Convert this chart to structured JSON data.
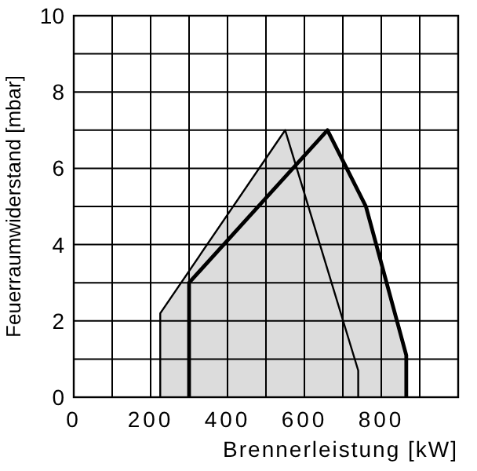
{
  "chart_data": {
    "type": "line",
    "xlabel": "Brennerleistung  [kW]",
    "ylabel": "Feuerraumwiderstand [mbar]",
    "xlim": [
      0,
      1000
    ],
    "ylim": [
      0,
      10
    ],
    "xticks": [
      0,
      {
        "value": 100,
        "label": null
      },
      200,
      {
        "value": 300,
        "label": null
      },
      400,
      {
        "value": 500,
        "label": null
      },
      600,
      {
        "value": 700,
        "label": null
      },
      800,
      {
        "value": 900,
        "label": null
      },
      {
        "value": 1000,
        "label": null
      }
    ],
    "yticks": [
      0,
      {
        "value": 1,
        "label": null
      },
      2,
      {
        "value": 3,
        "label": null
      },
      4,
      {
        "value": 5,
        "label": null
      },
      6,
      {
        "value": 7,
        "label": null
      },
      8,
      {
        "value": 9,
        "label": null
      },
      10
    ],
    "grid": true,
    "series": [
      {
        "type": "area",
        "color": "#dcdcdc",
        "x": [
          225,
          550,
          660,
          760,
          865
        ],
        "values": [
          2.2,
          7,
          7,
          5,
          1.1
        ]
      },
      {
        "color": "#000000",
        "x": [
          225,
          225,
          550,
          740,
          740
        ],
        "values": [
          0,
          2.2,
          7,
          0.7,
          0
        ]
      },
      {
        "color": "#000000",
        "x": [
          300,
          300,
          660,
          760,
          865,
          865
        ],
        "values": [
          0,
          3,
          7,
          5,
          1.1,
          0
        ]
      }
    ]
  }
}
